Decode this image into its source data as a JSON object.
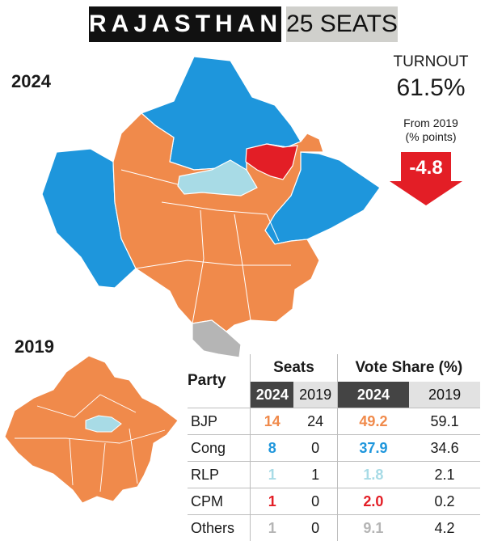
{
  "header": {
    "title": "RAJASTHAN",
    "seats": "25 SEATS"
  },
  "years": {
    "current": "2024",
    "previous": "2019"
  },
  "turnout": {
    "label": "TURNOUT",
    "value": "61.5%",
    "change_label_line1": "From 2019",
    "change_label_line2": "(% points)",
    "change": "-4.8"
  },
  "colors": {
    "BJP": "#f08a4b",
    "Cong": "#1e96dc",
    "RLP": "#a8dbe6",
    "CPM": "#e31e26",
    "Others": "#b5b5b5",
    "arrow": "#e31e26"
  },
  "table": {
    "party_header": "Party",
    "seats_header": "Seats",
    "vote_header": "Vote Share (%)",
    "year_2024": "2024",
    "year_2019": "2019",
    "rows": [
      {
        "party": "BJP",
        "seats_2024": "14",
        "seats_2019": "24",
        "vote_2024": "49.2",
        "vote_2019": "59.1"
      },
      {
        "party": "Cong",
        "seats_2024": "8",
        "seats_2019": "0",
        "vote_2024": "37.9",
        "vote_2019": "34.6"
      },
      {
        "party": "RLP",
        "seats_2024": "1",
        "seats_2019": "1",
        "vote_2024": "1.8",
        "vote_2019": "2.1"
      },
      {
        "party": "CPM",
        "seats_2024": "1",
        "seats_2019": "0",
        "vote_2024": "2.0",
        "vote_2019": "0.2"
      },
      {
        "party": "Others",
        "seats_2024": "1",
        "seats_2019": "0",
        "vote_2024": "9.1",
        "vote_2019": "4.2"
      }
    ]
  }
}
